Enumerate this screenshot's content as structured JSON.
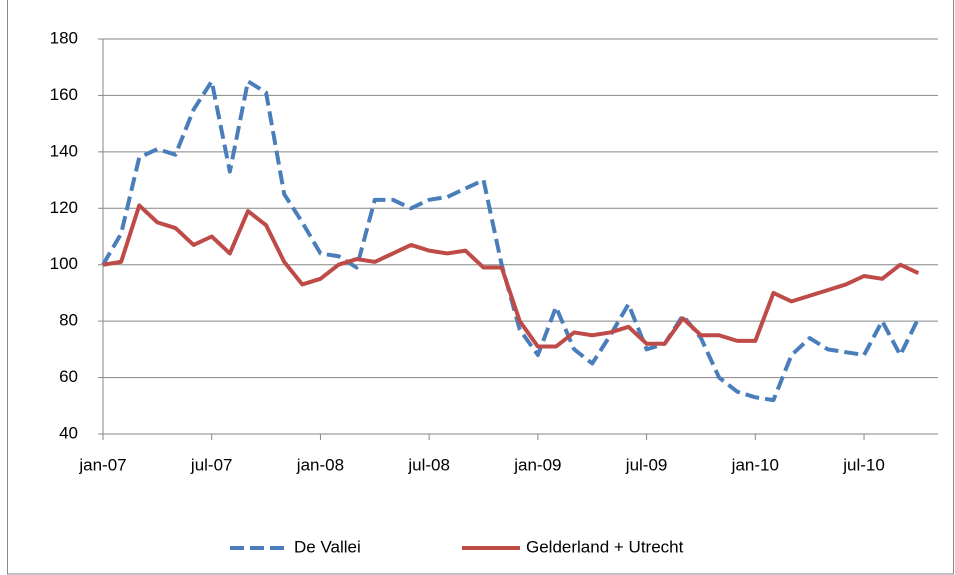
{
  "chart_data": {
    "type": "line",
    "categories": [
      "jan-07",
      null,
      null,
      null,
      null,
      null,
      "jul-07",
      null,
      null,
      null,
      null,
      null,
      "jan-08",
      null,
      null,
      null,
      null,
      null,
      "jul-08",
      null,
      null,
      null,
      null,
      null,
      "jan-09",
      null,
      null,
      null,
      null,
      null,
      "jul-09",
      null,
      null,
      null,
      null,
      null,
      "jan-10",
      null,
      null,
      null,
      null,
      null,
      "jul-10",
      null,
      null,
      null
    ],
    "series": [
      {
        "name": "De Vallei",
        "color": "#4a7ebb",
        "dashed": true,
        "values": [
          100,
          111,
          138,
          141,
          139,
          155,
          165,
          133,
          165,
          161,
          125,
          115,
          104,
          103,
          99,
          123,
          123,
          120,
          123,
          124,
          127,
          130,
          100,
          77,
          68,
          85,
          70,
          65,
          75,
          86,
          70,
          72,
          82,
          74,
          60,
          55,
          53,
          52,
          68,
          74,
          70,
          69,
          68,
          80,
          68,
          81
        ]
      },
      {
        "name": "Gelderland + Utrecht",
        "color": "#be4b48",
        "dashed": false,
        "values": [
          100,
          101,
          121,
          115,
          113,
          107,
          110,
          104,
          119,
          114,
          101,
          93,
          95,
          100,
          102,
          101,
          104,
          107,
          105,
          104,
          105,
          99,
          99,
          80,
          71,
          71,
          76,
          75,
          76,
          78,
          72,
          72,
          81,
          75,
          75,
          73,
          73,
          90,
          87,
          89,
          91,
          93,
          96,
          95,
          100,
          97
        ]
      }
    ],
    "ylim": [
      40,
      180
    ],
    "yticks": [
      40,
      60,
      80,
      100,
      120,
      140,
      160,
      180
    ],
    "grid": true,
    "legend": "bottom"
  }
}
